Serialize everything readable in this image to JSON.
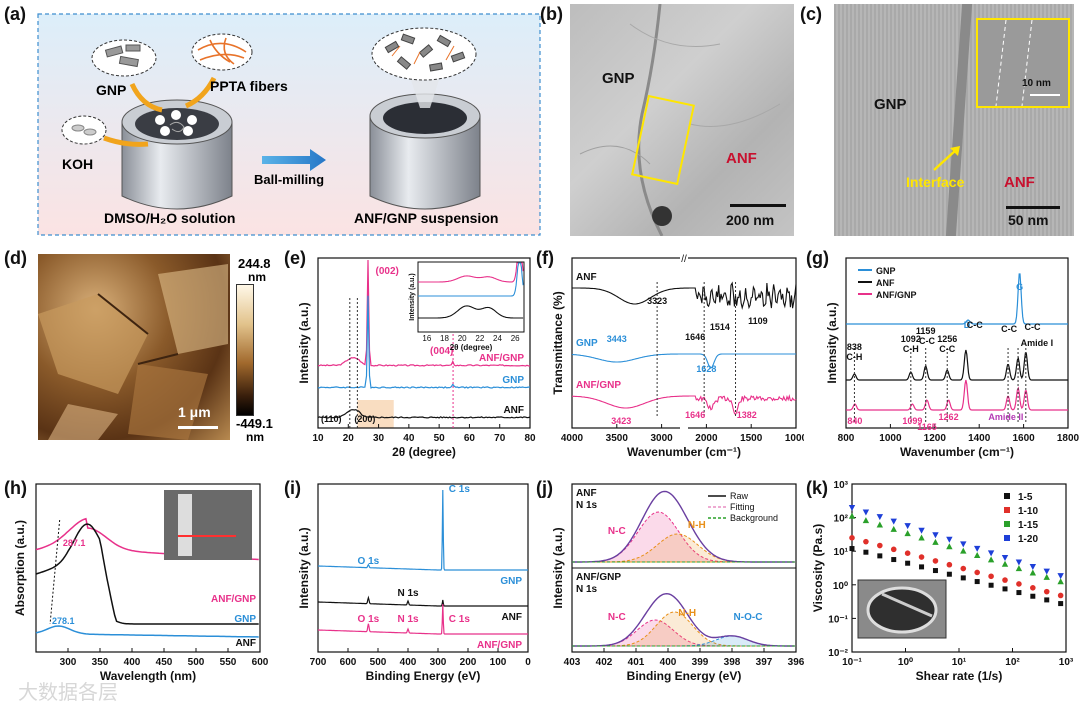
{
  "panels": {
    "a": {
      "label": "(a)",
      "gnp": "GNP",
      "ppta": "PPTA fibers",
      "koh": "KOH",
      "ball": "Ball-milling",
      "solution": "DMSO/H₂O solution",
      "suspension": "ANF/GNP suspension"
    },
    "b": {
      "label": "(b)",
      "gnp": "GNP",
      "anf": "ANF",
      "scale": "200 nm"
    },
    "c": {
      "label": "(c)",
      "gnp": "GNP",
      "interface": "Interface",
      "anf": "ANF",
      "scale": "50 nm",
      "inset_scale": "10 nm"
    },
    "d": {
      "label": "(d)",
      "cmax": "244.8",
      "cmax_unit": "nm",
      "cmin": "-449.1",
      "cmin_unit": "nm",
      "scale": "1 μm"
    },
    "e": {
      "label": "(e)"
    },
    "f": {
      "label": "(f)"
    },
    "g": {
      "label": "(g)"
    },
    "h": {
      "label": "(h)"
    },
    "i": {
      "label": "(i)"
    },
    "j": {
      "label": "(j)"
    },
    "k": {
      "label": "(k)"
    }
  },
  "watermark": "大数据各层",
  "chart_data": [
    {
      "id": "e",
      "type": "line",
      "xlabel": "2θ (degree)",
      "ylabel": "Intensity (a.u.)",
      "xlim": [
        10,
        80
      ],
      "xticks": [
        10,
        20,
        30,
        40,
        50,
        60,
        70,
        80
      ],
      "series": [
        {
          "name": "ANF/GNP",
          "color": "#e8318a"
        },
        {
          "name": "GNP",
          "color": "#2b8fd8"
        },
        {
          "name": "ANF",
          "color": "#111111"
        }
      ],
      "annotations": [
        "(002)",
        "(004)",
        "(110)",
        "(200)"
      ],
      "inset": {
        "xlabel": "2θ (degree)",
        "ylabel": "Intensity (a.u.)",
        "xticks": [
          16,
          18,
          20,
          22,
          24,
          26
        ]
      }
    },
    {
      "id": "f",
      "type": "line",
      "xlabel": "Wavenumber (cm⁻¹)",
      "ylabel": "Transmittance (%)",
      "xticks": [
        "4000",
        "3500",
        "3000",
        "2000",
        "1500",
        "1000"
      ],
      "series": [
        {
          "name": "ANF",
          "color": "#111111"
        },
        {
          "name": "GNP",
          "color": "#2b8fd8"
        },
        {
          "name": "ANF/GNP",
          "color": "#e8318a"
        }
      ],
      "annotations": [
        {
          "text": "3323",
          "color": "#111111"
        },
        {
          "text": "1646",
          "color": "#111111"
        },
        {
          "text": "1514",
          "color": "#111111"
        },
        {
          "text": "1109",
          "color": "#111111"
        },
        {
          "text": "3443",
          "color": "#2b8fd8"
        },
        {
          "text": "1628",
          "color": "#2b8fd8"
        },
        {
          "text": "3423",
          "color": "#e8318a"
        },
        {
          "text": "1646",
          "color": "#e8318a"
        },
        {
          "text": "1382",
          "color": "#e8318a"
        }
      ]
    },
    {
      "id": "g",
      "type": "line",
      "xlabel": "Wavenumber (cm⁻¹)",
      "ylabel": "Intensity (a.u.)",
      "xlim": [
        800,
        1800
      ],
      "xticks": [
        800,
        1000,
        1200,
        1400,
        1600,
        1800
      ],
      "series": [
        {
          "name": "GNP",
          "color": "#2b8fd8"
        },
        {
          "name": "ANF",
          "color": "#111111"
        },
        {
          "name": "ANF/GNP",
          "color": "#e8318a"
        }
      ],
      "annotations": [
        {
          "text": "G",
          "color": "#2b8fd8"
        },
        {
          "text": "D",
          "color": "#2b8fd8"
        },
        {
          "text": "838",
          "color": "#111111"
        },
        {
          "text": "C-H",
          "color": "#111111"
        },
        {
          "text": "1092",
          "color": "#111111"
        },
        {
          "text": "C-H",
          "color": "#111111"
        },
        {
          "text": "1159",
          "color": "#111111"
        },
        {
          "text": "C-C",
          "color": "#111111"
        },
        {
          "text": "1256",
          "color": "#111111"
        },
        {
          "text": "C-C",
          "color": "#111111"
        },
        {
          "text": "C-C",
          "color": "#111111"
        },
        {
          "text": "C-C",
          "color": "#111111"
        },
        {
          "text": "C-C",
          "color": "#111111"
        },
        {
          "text": "Amide I",
          "color": "#111111"
        },
        {
          "text": "840",
          "color": "#e8318a"
        },
        {
          "text": "1099",
          "color": "#e8318a"
        },
        {
          "text": "1165",
          "color": "#e8318a"
        },
        {
          "text": "1262",
          "color": "#e8318a"
        },
        {
          "text": "Amide II",
          "color": "#b43ab4"
        }
      ]
    },
    {
      "id": "h",
      "type": "line",
      "xlabel": "Wavelength (nm)",
      "ylabel": "Absorption (a.u.)",
      "xlim": [
        250,
        600
      ],
      "xticks": [
        300,
        350,
        400,
        450,
        500,
        550,
        600
      ],
      "series": [
        {
          "name": "ANF/GNP",
          "color": "#e8318a"
        },
        {
          "name": "GNP",
          "color": "#2b8fd8"
        },
        {
          "name": "ANF",
          "color": "#111111"
        }
      ],
      "annotations": [
        {
          "text": "287.1",
          "color": "#e8318a"
        },
        {
          "text": "278.1",
          "color": "#2b8fd8"
        }
      ]
    },
    {
      "id": "i",
      "type": "line",
      "xlabel": "Binding Energy (eV)",
      "ylabel": "Intensity (a.u.)",
      "xlim": [
        700,
        0
      ],
      "xticks": [
        700,
        600,
        500,
        400,
        300,
        200,
        100,
        0
      ],
      "series": [
        {
          "name": "GNP",
          "color": "#2b8fd8"
        },
        {
          "name": "ANF",
          "color": "#111111"
        },
        {
          "name": "ANF/GNP",
          "color": "#e8318a"
        }
      ],
      "annotations": [
        {
          "text": "C 1s",
          "color": "#2b8fd8"
        },
        {
          "text": "O 1s",
          "color": "#2b8fd8"
        },
        {
          "text": "N 1s",
          "color": "#111111"
        },
        {
          "text": "O 1s",
          "color": "#e8318a"
        },
        {
          "text": "N 1s",
          "color": "#e8318a"
        },
        {
          "text": "C 1s",
          "color": "#e8318a"
        }
      ]
    },
    {
      "id": "j",
      "type": "line",
      "xlabel": "Binding Energy (eV)",
      "ylabel": "Intensity (a.u.)",
      "xlim": [
        403,
        396
      ],
      "xticks": [
        403,
        402,
        401,
        400,
        399,
        398,
        397,
        396
      ],
      "legend": [
        {
          "name": "Raw",
          "color": "#111111"
        },
        {
          "name": "Fitting",
          "color": "#e88fc4"
        },
        {
          "name": "Background",
          "color": "#2aa02a"
        }
      ],
      "subpanels": [
        {
          "title1": "ANF",
          "title2": "N 1s",
          "peaks": [
            {
              "text": "N-C",
              "color": "#e8318a"
            },
            {
              "text": "N-H",
              "color": "#e8901a"
            }
          ]
        },
        {
          "title1": "ANF/GNP",
          "title2": "N 1s",
          "peaks": [
            {
              "text": "N-C",
              "color": "#e8318a"
            },
            {
              "text": "N-H",
              "color": "#e8901a"
            },
            {
              "text": "N-O-C",
              "color": "#2b8fd8"
            }
          ]
        }
      ]
    },
    {
      "id": "k",
      "type": "scatter",
      "xlabel": "Shear rate (1/s)",
      "ylabel": "Viscosity (Pa.s)",
      "log_x": true,
      "log_y": true,
      "xlim": [
        0.1,
        1000
      ],
      "ylim": [
        0.01,
        1000
      ],
      "xticks": [
        "10⁻¹",
        "10⁰",
        "10¹",
        "10²",
        "10³"
      ],
      "yticks": [
        "10⁻²",
        "10⁻¹",
        "10⁰",
        "10¹",
        "10²",
        "10³"
      ],
      "series": [
        {
          "name": "1-5",
          "color": "#111111",
          "marker": "square",
          "start": 12,
          "slope": -0.42
        },
        {
          "name": "1-10",
          "color": "#e0302a",
          "marker": "circle",
          "start": 25,
          "slope": -0.44
        },
        {
          "name": "1-15",
          "color": "#2aa02a",
          "marker": "triangle",
          "start": 110,
          "slope": -0.5
        },
        {
          "name": "1-20",
          "color": "#1e3fd8",
          "marker": "tri-down",
          "start": 200,
          "slope": -0.52
        }
      ]
    }
  ]
}
